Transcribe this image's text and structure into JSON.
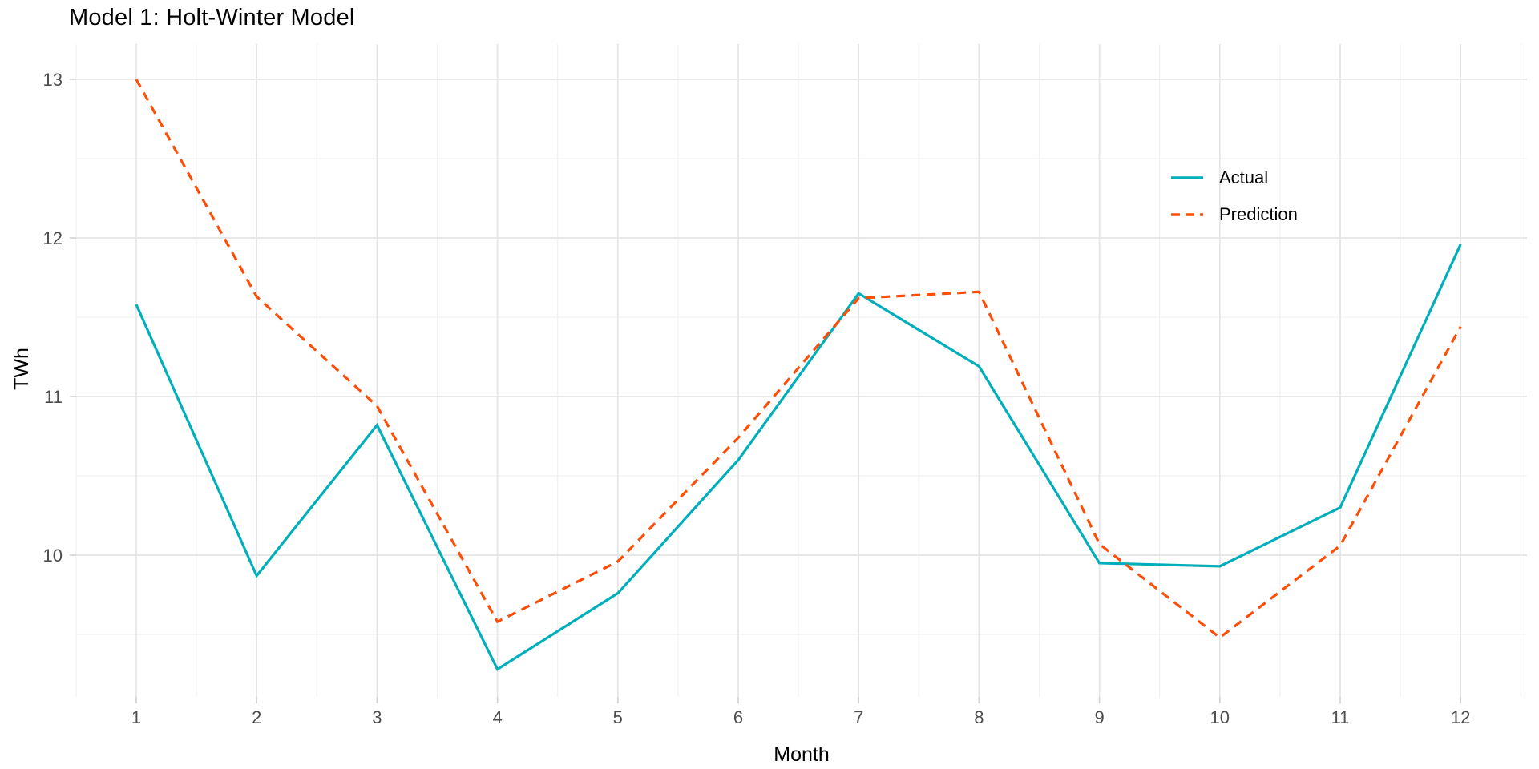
{
  "chart_data": {
    "type": "line",
    "title": "Model 1: Holt-Winter Model",
    "xlabel": "Month",
    "ylabel": "TWh",
    "x": [
      1,
      2,
      3,
      4,
      5,
      6,
      7,
      8,
      9,
      10,
      11,
      12
    ],
    "x_tick_labels": [
      "1",
      "2",
      "3",
      "4",
      "5",
      "6",
      "7",
      "8",
      "9",
      "10",
      "11",
      "12"
    ],
    "y_ticks": [
      10,
      11,
      12,
      13
    ],
    "y_tick_labels": [
      "10",
      "11",
      "12",
      "13"
    ],
    "xlim": [
      0.5,
      12.55
    ],
    "ylim": [
      9.1,
      13.22
    ],
    "grid": "major+minor",
    "legend_position": "inside-top-right",
    "background_color": "#FFFFFF",
    "major_grid_color": "#E5E5E5",
    "minor_grid_color": "#F1F1F1",
    "tick_label_color": "#4D4D4D",
    "series": [
      {
        "name": "Actual",
        "style": "solid",
        "color": "#00AFBB",
        "values": [
          11.58,
          9.87,
          10.82,
          9.28,
          9.76,
          10.6,
          11.65,
          11.19,
          9.95,
          9.93,
          10.3,
          11.96
        ]
      },
      {
        "name": "Prediction",
        "style": "dashed",
        "color": "#FC4E07",
        "values": [
          13.0,
          11.63,
          10.94,
          9.58,
          9.96,
          10.74,
          11.62,
          11.66,
          10.07,
          9.48,
          10.06,
          11.44
        ]
      }
    ]
  }
}
